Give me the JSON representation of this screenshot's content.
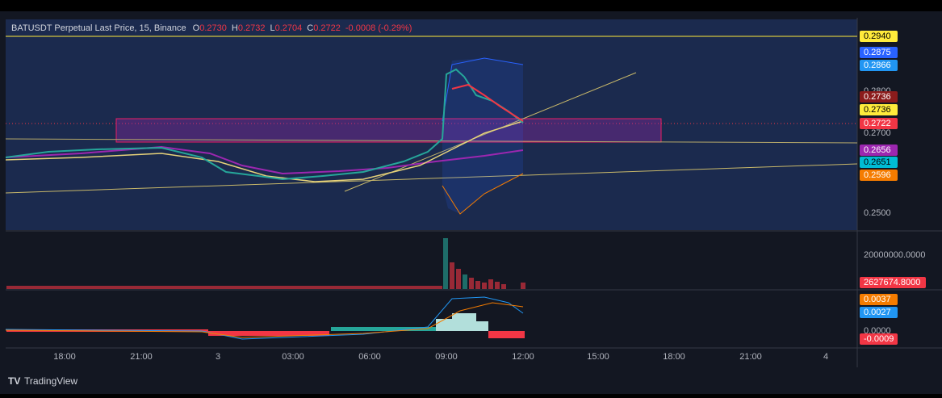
{
  "header": {
    "symbol": "BATUSDT Perpetual Last Price, 15, Binance",
    "ohlc": [
      {
        "label": "O",
        "value": "0.2730"
      },
      {
        "label": "H",
        "value": "0.2732"
      },
      {
        "label": "L",
        "value": "0.2704"
      },
      {
        "label": "C",
        "value": "0.2722"
      }
    ],
    "change": "-0.0008 (-0.29%)"
  },
  "price_axis": [
    {
      "text": "0.2940",
      "color": "#ffeb3b",
      "ink": "#000"
    },
    {
      "text": "0.2875",
      "color": "#2962ff",
      "ink": "#fff"
    },
    {
      "text": "0.2866",
      "color": "#2196f3",
      "ink": "#fff"
    },
    {
      "text": "0.2800",
      "color": null,
      "ink": "#b2b5be"
    },
    {
      "text": "0.2736",
      "color": "#8b1c1c",
      "ink": "#fff"
    },
    {
      "text": "0.2736",
      "color": "#ffeb3b",
      "ink": "#000"
    },
    {
      "text": "0.2722",
      "color": "#f23645",
      "ink": "#fff"
    },
    {
      "text": "0.2700",
      "color": null,
      "ink": "#b2b5be"
    },
    {
      "text": "0.2656",
      "color": "#9c27b0",
      "ink": "#fff"
    },
    {
      "text": "0.2651",
      "color": "#00bcd4",
      "ink": "#000"
    },
    {
      "text": "0.2596",
      "color": "#f57c00",
      "ink": "#fff"
    },
    {
      "text": "0.2500",
      "color": null,
      "ink": "#b2b5be"
    }
  ],
  "volume_axis": [
    {
      "text": "20000000.0000",
      "color": null,
      "ink": "#b2b5be"
    },
    {
      "text": "2627674.8000",
      "color": "#f23645",
      "ink": "#fff"
    }
  ],
  "macd_axis": [
    {
      "text": "0.0037",
      "color": "#f57c00",
      "ink": "#fff"
    },
    {
      "text": "0.0027",
      "color": "#2196f3",
      "ink": "#fff"
    },
    {
      "text": "0.0000",
      "color": null,
      "ink": "#b2b5be"
    },
    {
      "text": "-0.0009",
      "color": "#f23645",
      "ink": "#fff"
    }
  ],
  "time_axis": [
    "18:00",
    "21:00",
    "3",
    "03:00",
    "06:00",
    "09:00",
    "12:00",
    "15:00",
    "18:00",
    "21:00",
    "4"
  ],
  "footer": {
    "brand": "TradingView"
  }
}
